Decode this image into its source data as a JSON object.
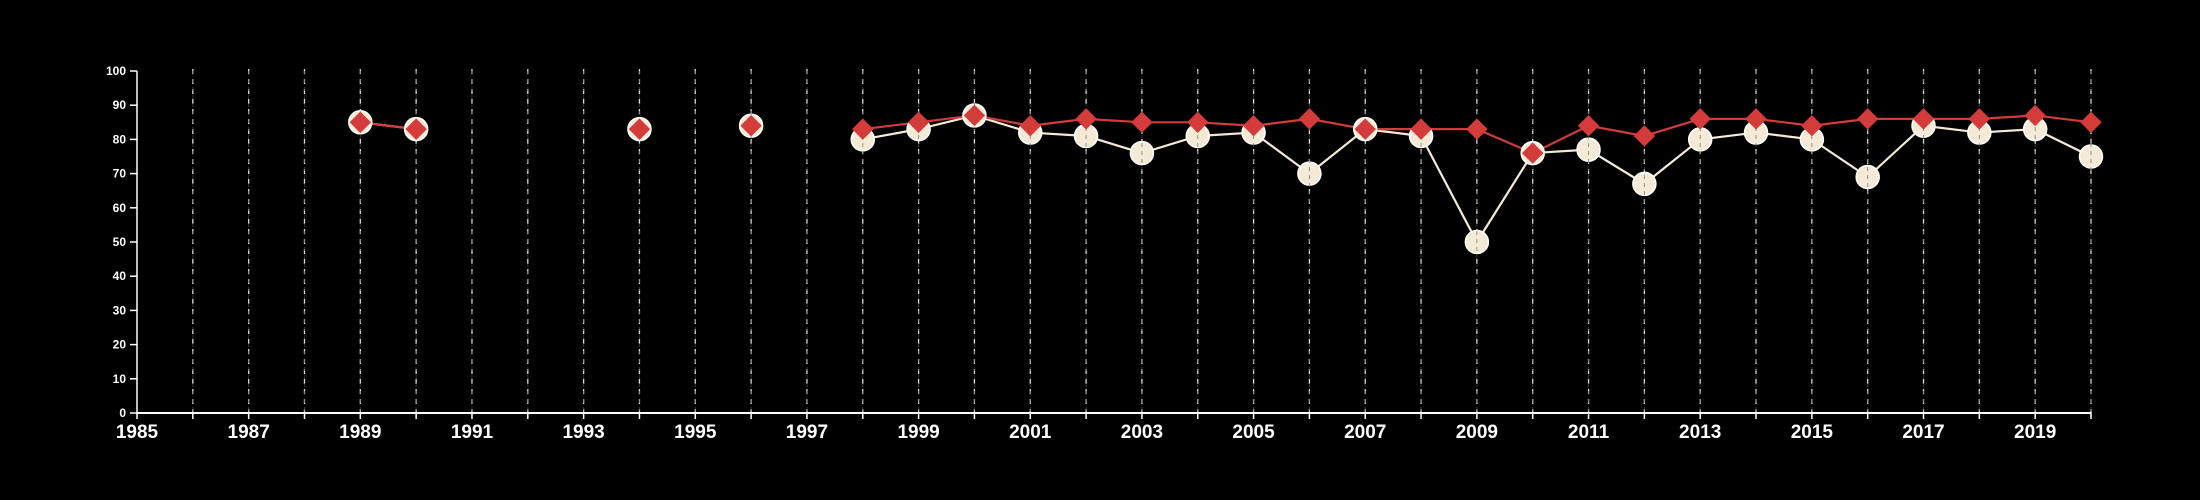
{
  "chart_data": {
    "type": "line",
    "title": "",
    "xlabel": "",
    "ylabel": "",
    "xlim": [
      1985,
      2020
    ],
    "ylim": [
      0,
      100
    ],
    "y_ticks": [
      0,
      10,
      20,
      30,
      40,
      50,
      60,
      70,
      80,
      90,
      100
    ],
    "x_tick_labels": [
      "1985",
      "1987",
      "1989",
      "1991",
      "1993",
      "1995",
      "1997",
      "1999",
      "2001",
      "2003",
      "2005",
      "2007",
      "2009",
      "2011",
      "2013",
      "2015",
      "2017",
      "2019"
    ],
    "grid": "vertical dashed lines at every year",
    "legend": "none",
    "series": [
      {
        "marker": "circle",
        "color": "#f5ead6",
        "points": [
          {
            "x": 1989,
            "y": 85
          },
          {
            "x": 1990,
            "y": 83
          },
          {
            "x": 1994,
            "y": 83
          },
          {
            "x": 1996,
            "y": 84
          },
          {
            "x": 1998,
            "y": 80
          },
          {
            "x": 1999,
            "y": 83
          },
          {
            "x": 2000,
            "y": 87
          },
          {
            "x": 2001,
            "y": 82
          },
          {
            "x": 2002,
            "y": 81
          },
          {
            "x": 2003,
            "y": 76
          },
          {
            "x": 2004,
            "y": 81
          },
          {
            "x": 2005,
            "y": 82
          },
          {
            "x": 2006,
            "y": 70
          },
          {
            "x": 2007,
            "y": 83
          },
          {
            "x": 2008,
            "y": 81
          },
          {
            "x": 2009,
            "y": 50
          },
          {
            "x": 2010,
            "y": 76
          },
          {
            "x": 2011,
            "y": 77
          },
          {
            "x": 2012,
            "y": 67
          },
          {
            "x": 2013,
            "y": 80
          },
          {
            "x": 2014,
            "y": 82
          },
          {
            "x": 2015,
            "y": 80
          },
          {
            "x": 2016,
            "y": 69
          },
          {
            "x": 2017,
            "y": 84
          },
          {
            "x": 2018,
            "y": 82
          },
          {
            "x": 2019,
            "y": 83
          },
          {
            "x": 2020,
            "y": 75
          }
        ]
      },
      {
        "marker": "diamond",
        "color": "#d43b3b",
        "points": [
          {
            "x": 1989,
            "y": 85
          },
          {
            "x": 1990,
            "y": 83
          },
          {
            "x": 1994,
            "y": 83
          },
          {
            "x": 1996,
            "y": 84
          },
          {
            "x": 1998,
            "y": 83
          },
          {
            "x": 1999,
            "y": 85
          },
          {
            "x": 2000,
            "y": 87
          },
          {
            "x": 2001,
            "y": 84
          },
          {
            "x": 2002,
            "y": 86
          },
          {
            "x": 2003,
            "y": 85
          },
          {
            "x": 2004,
            "y": 85
          },
          {
            "x": 2005,
            "y": 84
          },
          {
            "x": 2006,
            "y": 86
          },
          {
            "x": 2007,
            "y": 83
          },
          {
            "x": 2008,
            "y": 83
          },
          {
            "x": 2009,
            "y": 83
          },
          {
            "x": 2010,
            "y": 76
          },
          {
            "x": 2011,
            "y": 84
          },
          {
            "x": 2012,
            "y": 81
          },
          {
            "x": 2013,
            "y": 86
          },
          {
            "x": 2014,
            "y": 86
          },
          {
            "x": 2015,
            "y": 84
          },
          {
            "x": 2016,
            "y": 86
          },
          {
            "x": 2017,
            "y": 86
          },
          {
            "x": 2018,
            "y": 86
          },
          {
            "x": 2019,
            "y": 87
          },
          {
            "x": 2020,
            "y": 85
          }
        ]
      }
    ]
  }
}
